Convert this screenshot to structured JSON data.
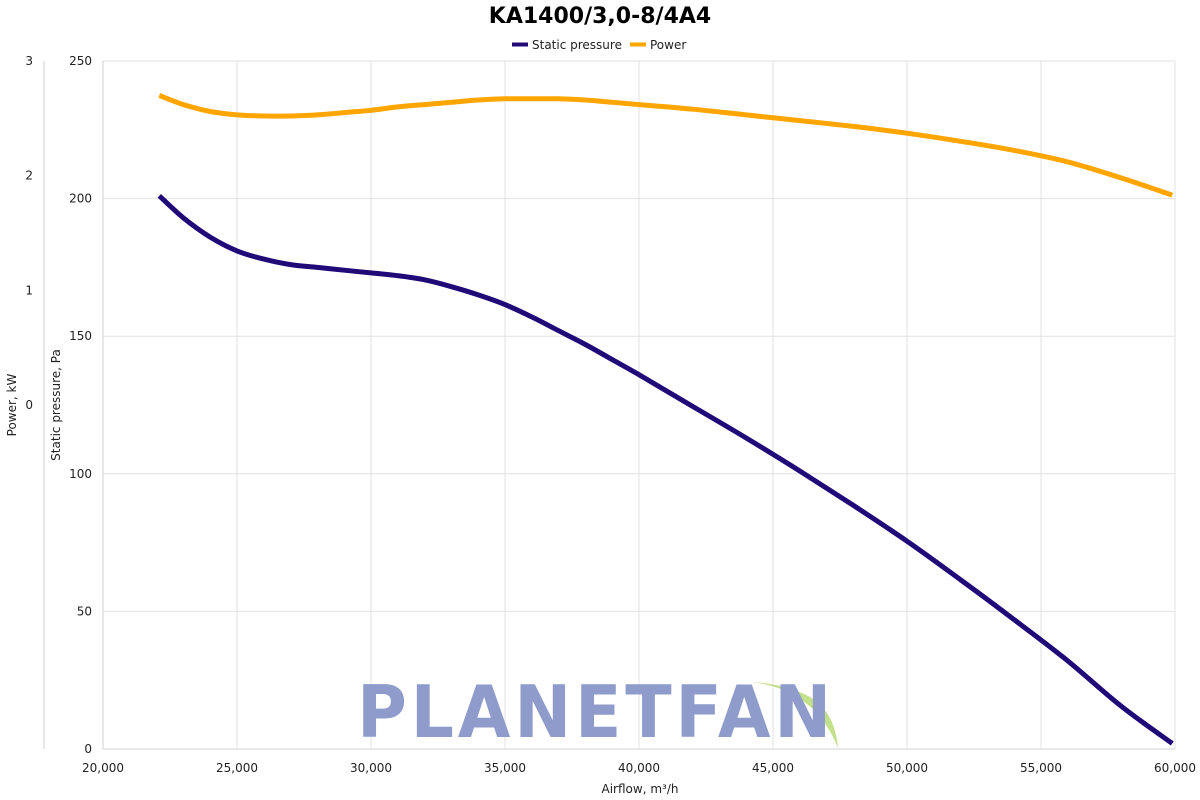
{
  "chart_data": {
    "type": "line",
    "title": "KA1400/3,0-8/4A4",
    "xlabel": "Airflow, m³/h",
    "ylabel_left_outer": "Power, kW",
    "ylabel_left_inner": "Static pressure, Pa",
    "xlim": [
      20000,
      60000
    ],
    "ylim_pressure": [
      0,
      250
    ],
    "ylim_power": [
      -3,
      3
    ],
    "x_ticks": [
      "20,000",
      "25,000",
      "30,000",
      "35,000",
      "40,000",
      "45,000",
      "50,000",
      "55,000",
      "60,000"
    ],
    "pressure_ticks": [
      "0",
      "50",
      "100",
      "150",
      "200",
      "250"
    ],
    "power_ticks": [
      "3",
      "2",
      "1",
      "0"
    ],
    "grid": true,
    "legend_placement": "top-center",
    "series": [
      {
        "name": "Static pressure",
        "axis": "pressure",
        "color": "#1f0a78",
        "x": [
          22100,
          23000,
          24000,
          25000,
          26000,
          27000,
          28000,
          29000,
          30000,
          31000,
          32000,
          33000,
          34000,
          35000,
          36000,
          37000,
          38000,
          39000,
          40000,
          42000,
          44000,
          46000,
          48000,
          50000,
          52000,
          54000,
          56000,
          58000,
          59900
        ],
        "values": [
          201,
          193,
          186,
          181,
          178,
          176,
          175,
          174,
          173,
          172,
          170.5,
          168,
          165,
          161.5,
          157,
          152,
          147,
          141.5,
          136,
          124.5,
          113,
          101,
          88.5,
          75.5,
          61.5,
          47,
          32,
          15.5,
          2
        ]
      },
      {
        "name": "Power",
        "axis": "power",
        "color": "#ffa500",
        "x": [
          22100,
          23000,
          24000,
          25000,
          26000,
          27000,
          28000,
          29000,
          30000,
          31000,
          32000,
          33000,
          34000,
          35000,
          36000,
          37000,
          38000,
          39000,
          40000,
          42000,
          44000,
          46000,
          48000,
          50000,
          52000,
          54000,
          56000,
          58000,
          59900
        ],
        "values": [
          2.7,
          2.62,
          2.56,
          2.53,
          2.52,
          2.52,
          2.53,
          2.55,
          2.57,
          2.6,
          2.62,
          2.64,
          2.66,
          2.67,
          2.67,
          2.67,
          2.66,
          2.64,
          2.62,
          2.58,
          2.53,
          2.48,
          2.43,
          2.37,
          2.3,
          2.22,
          2.12,
          1.98,
          1.83
        ]
      }
    ]
  },
  "watermark": {
    "text": "PLANETFAN",
    "color": "#8e9bcb",
    "leaf_color": "#c3e08c"
  }
}
